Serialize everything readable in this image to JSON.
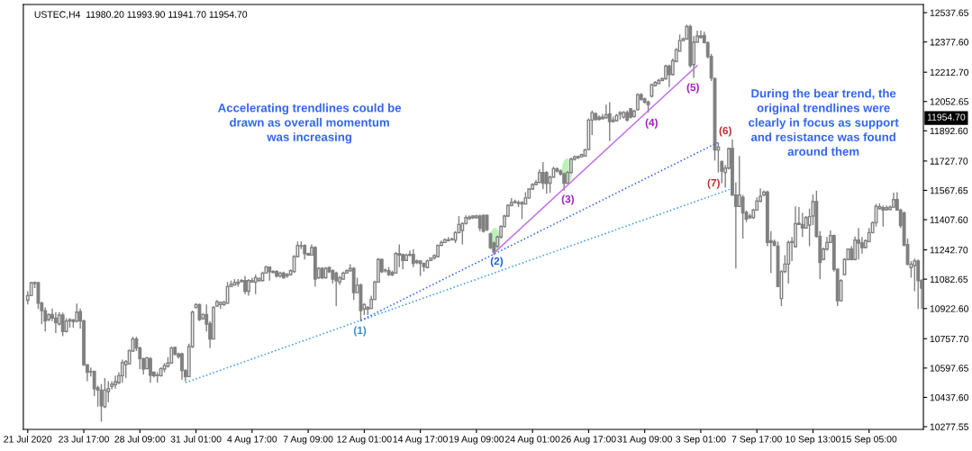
{
  "chart_data": {
    "type": "candlestick",
    "title": "USTEC,H4  11980.20 11993.90 11941.70 11954.70",
    "color": "#808080",
    "categories": [
      "21 Jul 2020",
      null,
      null,
      null,
      null,
      null,
      null,
      null,
      null,
      null,
      null,
      null,
      null,
      null,
      null,
      null,
      "23 Jul 17:00",
      null,
      null,
      null,
      null,
      null,
      null,
      null,
      null,
      null,
      null,
      null,
      null,
      null,
      null,
      null,
      "28 Jul 09:00",
      null,
      null,
      null,
      null,
      null,
      null,
      null,
      null,
      null,
      null,
      null,
      null,
      null,
      null,
      null,
      "31 Jul 01:00",
      null,
      null,
      null,
      null,
      null,
      null,
      null,
      null,
      null,
      null,
      null,
      null,
      null,
      null,
      null,
      "4 Aug 17:00",
      null,
      null,
      null,
      null,
      null,
      null,
      null,
      null,
      null,
      null,
      null,
      null,
      null,
      null,
      null,
      "7 Aug 09:00",
      null,
      null,
      null,
      null,
      null,
      null,
      null,
      null,
      null,
      null,
      null,
      null,
      null,
      null,
      null,
      "12 Aug 01:00",
      null,
      null,
      null,
      null,
      null,
      null,
      null,
      null,
      null,
      null,
      null,
      null,
      null,
      null,
      null,
      "14 Aug 17:00",
      null,
      null,
      null,
      null,
      null,
      null,
      null,
      null,
      null,
      null,
      null,
      null,
      null,
      null,
      null,
      "19 Aug 09:00",
      null,
      null,
      null,
      null,
      null,
      null,
      null,
      null,
      null,
      null,
      null,
      null,
      null,
      null,
      null,
      "24 Aug 01:00",
      null,
      null,
      null,
      null,
      null,
      null,
      null,
      null,
      null,
      null,
      null,
      null,
      null,
      null,
      null,
      "26 Aug 17:00",
      null,
      null,
      null,
      null,
      null,
      null,
      null,
      null,
      null,
      null,
      null,
      null,
      null,
      null,
      null,
      "31 Aug 09:00",
      null,
      null,
      null,
      null,
      null,
      null,
      null,
      null,
      null,
      null,
      null,
      null,
      null,
      null,
      null,
      "3 Sep 01:00",
      null,
      null,
      null,
      null,
      null,
      null,
      null,
      null,
      null,
      null,
      null,
      null,
      null,
      null,
      null,
      "7 Sep 17:00",
      null,
      null,
      null,
      null,
      null,
      null,
      null,
      null,
      null,
      null,
      null,
      null,
      null,
      null,
      null,
      "10 Sep 13:00",
      null,
      null,
      null,
      null,
      null,
      null,
      null,
      null,
      null,
      null,
      null,
      null,
      null,
      null,
      null,
      "15 Sep 05:00",
      null,
      null,
      null,
      null,
      null,
      null,
      null,
      null,
      null,
      null,
      null,
      null,
      null,
      null,
      null
    ],
    "ohlc": [
      [
        10968,
        11017,
        10944,
        10993
      ],
      [
        10993,
        11067,
        10993,
        11064
      ],
      [
        11059,
        11070,
        11034,
        11064
      ],
      [
        11064,
        11067,
        10920,
        10952
      ],
      [
        10952,
        10960,
        10838,
        10911
      ],
      [
        10911,
        10928,
        10797,
        10854
      ],
      [
        10862,
        10895,
        10854,
        10890
      ],
      [
        10890,
        10923,
        10854,
        10870
      ],
      [
        10870,
        10903,
        10789,
        10846
      ],
      [
        10838,
        10903,
        10830,
        10887
      ],
      [
        10887,
        10900,
        10772,
        10797
      ],
      [
        10797,
        10870,
        10792,
        10854
      ],
      [
        10854,
        10870,
        10818,
        10861
      ],
      [
        10861,
        10862,
        10818,
        10851
      ],
      [
        10854,
        10949,
        10846,
        10903
      ],
      [
        10906,
        10923,
        10813,
        10854
      ],
      [
        10854,
        10862,
        10608,
        10616
      ],
      [
        10616,
        10616,
        10526,
        10575
      ],
      [
        10579,
        10600,
        10551,
        10577
      ],
      [
        10579,
        10584,
        10444,
        10485
      ],
      [
        10490,
        10502,
        10387,
        10477
      ],
      [
        10477,
        10510,
        10305,
        10392
      ],
      [
        10387,
        10543,
        10379,
        10477
      ],
      [
        10469,
        10526,
        10412,
        10485
      ],
      [
        10497,
        10526,
        10481,
        10510
      ],
      [
        10507,
        10556,
        10485,
        10523
      ],
      [
        10518,
        10575,
        10510,
        10556
      ],
      [
        10556,
        10644,
        10518,
        10628
      ],
      [
        10616,
        10641,
        10543,
        10633
      ],
      [
        10621,
        10698,
        10616,
        10693
      ],
      [
        10690,
        10769,
        10687,
        10756
      ],
      [
        10756,
        10769,
        10690,
        10707
      ],
      [
        10707,
        10715,
        10592,
        10649
      ],
      [
        10649,
        10654,
        10562,
        10592
      ],
      [
        10595,
        10657,
        10589,
        10654
      ],
      [
        10649,
        10657,
        10518,
        10559
      ],
      [
        10575,
        10579,
        10546,
        10556
      ],
      [
        10559,
        10575,
        10518,
        10557
      ],
      [
        10556,
        10600,
        10551,
        10595
      ],
      [
        10592,
        10625,
        10575,
        10611
      ],
      [
        10608,
        10657,
        10600,
        10625
      ],
      [
        10625,
        10715,
        10625,
        10707
      ],
      [
        10710,
        10715,
        10666,
        10674
      ],
      [
        10674,
        10682,
        10649,
        10661
      ],
      [
        10674,
        10682,
        10534,
        10584
      ],
      [
        10584,
        10592,
        10526,
        10551
      ],
      [
        10551,
        10731,
        10551,
        10715
      ],
      [
        10715,
        10911,
        10707,
        10903
      ],
      [
        10928,
        10952,
        10923,
        10944
      ],
      [
        10944,
        10949,
        10854,
        10862
      ],
      [
        10867,
        10895,
        10862,
        10890
      ],
      [
        10890,
        10944,
        10797,
        10838
      ],
      [
        10841,
        10854,
        10707,
        10756
      ],
      [
        10756,
        10936,
        10756,
        10928
      ],
      [
        10936,
        10969,
        10933,
        10960
      ],
      [
        10944,
        10960,
        10920,
        10956
      ],
      [
        10944,
        10965,
        10936,
        10956
      ],
      [
        10952,
        11067,
        10949,
        11042
      ],
      [
        11042,
        11075,
        11042,
        11054
      ],
      [
        11051,
        11083,
        11047,
        11064
      ],
      [
        11059,
        11083,
        11042,
        11067
      ],
      [
        11070,
        11083,
        11064,
        11075
      ],
      [
        11075,
        11100,
        11001,
        11017
      ],
      [
        11017,
        11083,
        10993,
        11075
      ],
      [
        11067,
        11091,
        11064,
        11075
      ],
      [
        11067,
        11108,
        11001,
        11091
      ],
      [
        11075,
        11091,
        11070,
        11086
      ],
      [
        11075,
        11124,
        11070,
        11116
      ],
      [
        11116,
        11157,
        11113,
        11149
      ],
      [
        11149,
        11152,
        11075,
        11124
      ],
      [
        11124,
        11132,
        11116,
        11119
      ],
      [
        11124,
        11132,
        11091,
        11100
      ],
      [
        11100,
        11124,
        11091,
        11116
      ],
      [
        11116,
        11124,
        11086,
        11091
      ],
      [
        11100,
        11116,
        11091,
        11108
      ],
      [
        11108,
        11136,
        11103,
        11129
      ],
      [
        11124,
        11214,
        11119,
        11206
      ],
      [
        11206,
        11288,
        11201,
        11267
      ],
      [
        11263,
        11288,
        11247,
        11265
      ],
      [
        11267,
        11272,
        11190,
        11222
      ],
      [
        11222,
        11227,
        11211,
        11214
      ],
      [
        11214,
        11272,
        11211,
        11255
      ],
      [
        11255,
        11263,
        11042,
        11083
      ],
      [
        11091,
        11149,
        11083,
        11141
      ],
      [
        11141,
        11149,
        11083,
        11091
      ],
      [
        11091,
        11149,
        11086,
        11141
      ],
      [
        11146,
        11152,
        11116,
        11124
      ],
      [
        11129,
        11136,
        11059,
        11083
      ],
      [
        11116,
        11124,
        10936,
        11075
      ],
      [
        11067,
        11100,
        11051,
        11091
      ],
      [
        11083,
        11124,
        11080,
        11116
      ],
      [
        11116,
        11136,
        11113,
        11129
      ],
      [
        11129,
        11165,
        11124,
        11141
      ],
      [
        11141,
        11149,
        10969,
        11009
      ],
      [
        11009,
        11091,
        11009,
        11051
      ],
      [
        11051,
        11059,
        10854,
        10911
      ],
      [
        10920,
        10952,
        10887,
        10944
      ],
      [
        10920,
        10936,
        10887,
        10928
      ],
      [
        10923,
        10993,
        10920,
        10972
      ],
      [
        10972,
        11075,
        10969,
        11067
      ],
      [
        11067,
        11198,
        11064,
        11190
      ],
      [
        11190,
        11195,
        11116,
        11124
      ],
      [
        11132,
        11141,
        11119,
        11129
      ],
      [
        11129,
        11149,
        11100,
        11108
      ],
      [
        11119,
        11129,
        11100,
        11106
      ],
      [
        11116,
        11231,
        11113,
        11222
      ],
      [
        11222,
        11272,
        11149,
        11214
      ],
      [
        11218,
        11222,
        11136,
        11185
      ],
      [
        11185,
        11222,
        11182,
        11214
      ],
      [
        11214,
        11239,
        11206,
        11218
      ],
      [
        11218,
        11247,
        11149,
        11169
      ],
      [
        11182,
        11190,
        11165,
        11174
      ],
      [
        11182,
        11185,
        11100,
        11169
      ],
      [
        11169,
        11174,
        11124,
        11152
      ],
      [
        11146,
        11190,
        11141,
        11182
      ],
      [
        11185,
        11201,
        11182,
        11198
      ],
      [
        11198,
        11218,
        11190,
        11211
      ],
      [
        11206,
        11272,
        11201,
        11267
      ],
      [
        11267,
        11293,
        11263,
        11283
      ],
      [
        11283,
        11304,
        11280,
        11299
      ],
      [
        11293,
        11313,
        11288,
        11297
      ],
      [
        11299,
        11309,
        11293,
        11302
      ],
      [
        11296,
        11345,
        11280,
        11337
      ],
      [
        11337,
        11427,
        11332,
        11381
      ],
      [
        11349,
        11394,
        11272,
        11386
      ],
      [
        11386,
        11431,
        11381,
        11419
      ],
      [
        11414,
        11431,
        11407,
        11422
      ],
      [
        11419,
        11431,
        11411,
        11427
      ],
      [
        11419,
        11435,
        11414,
        11428
      ],
      [
        11427,
        11435,
        11345,
        11362
      ],
      [
        11431,
        11435,
        11337,
        11345
      ],
      [
        11431,
        11435,
        11345,
        11353
      ],
      [
        11329,
        11337,
        11247,
        11255
      ],
      [
        11280,
        11288,
        11214,
        11231
      ],
      [
        11263,
        11321,
        11255,
        11313
      ],
      [
        11313,
        11378,
        11304,
        11370
      ],
      [
        11370,
        11435,
        11365,
        11427
      ],
      [
        11427,
        11493,
        11424,
        11485
      ],
      [
        11485,
        11526,
        11480,
        11501
      ],
      [
        11501,
        11517,
        11496,
        11506
      ],
      [
        11501,
        11513,
        11476,
        11496
      ],
      [
        11501,
        11509,
        11411,
        11493
      ],
      [
        11493,
        11558,
        11490,
        11526
      ],
      [
        11526,
        11578,
        11522,
        11575
      ],
      [
        11575,
        11607,
        11571,
        11599
      ],
      [
        11599,
        11624,
        11594,
        11611
      ],
      [
        11611,
        11681,
        11607,
        11665
      ],
      [
        11665,
        11722,
        11575,
        11607
      ],
      [
        11665,
        11673,
        11550,
        11605
      ],
      [
        11607,
        11648,
        11555,
        11640
      ],
      [
        11640,
        11697,
        11637,
        11686
      ],
      [
        11686,
        11692,
        11665,
        11673
      ],
      [
        11673,
        11681,
        11648,
        11657
      ],
      [
        11657,
        11665,
        11566,
        11607
      ],
      [
        11607,
        11673,
        11604,
        11665
      ],
      [
        11665,
        11747,
        11660,
        11738
      ],
      [
        11738,
        11758,
        11730,
        11751
      ],
      [
        11746,
        11758,
        11738,
        11752
      ],
      [
        11751,
        11768,
        11746,
        11763
      ],
      [
        11755,
        11796,
        11751,
        11788
      ],
      [
        11791,
        11960,
        11788,
        11951
      ],
      [
        11951,
        12004,
        11869,
        11992
      ],
      [
        11987,
        11992,
        11948,
        11954
      ],
      [
        11967,
        11976,
        11948,
        11955
      ],
      [
        11959,
        11984,
        11954,
        11967
      ],
      [
        11964,
        12036,
        11959,
        11981
      ],
      [
        11984,
        12049,
        11837,
        11943
      ],
      [
        11943,
        11971,
        11938,
        11951
      ],
      [
        11948,
        11984,
        11943,
        11976
      ],
      [
        11984,
        12000,
        11954,
        11992
      ],
      [
        11967,
        12000,
        11959,
        11993
      ],
      [
        11992,
        12004,
        11943,
        11951
      ],
      [
        12012,
        12017,
        11959,
        11967
      ],
      [
        11971,
        12008,
        11964,
        12000
      ],
      [
        12008,
        12098,
        12004,
        12090
      ],
      [
        12090,
        12098,
        12058,
        12063
      ],
      [
        12066,
        12074,
        12041,
        12049
      ],
      [
        12049,
        12058,
        11992,
        12036
      ],
      [
        12082,
        12151,
        12074,
        12144
      ],
      [
        12140,
        12164,
        12135,
        12156
      ],
      [
        12151,
        12177,
        12148,
        12167
      ],
      [
        12167,
        12184,
        12164,
        12177
      ],
      [
        12177,
        12254,
        12172,
        12246
      ],
      [
        12246,
        12254,
        12131,
        12200
      ],
      [
        12200,
        12287,
        12194,
        12275
      ],
      [
        12271,
        12344,
        12266,
        12336
      ],
      [
        12328,
        12418,
        12325,
        12385
      ],
      [
        12385,
        12402,
        12380,
        12394
      ],
      [
        12394,
        12472,
        12390,
        12462
      ],
      [
        12462,
        12472,
        12238,
        12249
      ],
      [
        12254,
        12410,
        12181,
        12377
      ],
      [
        12377,
        12439,
        12374,
        12410
      ],
      [
        12410,
        12439,
        12394,
        12402
      ],
      [
        12413,
        12434,
        12369,
        12374
      ],
      [
        12374,
        12380,
        12287,
        12298
      ],
      [
        12298,
        12312,
        12164,
        12181
      ],
      [
        12177,
        12184,
        11730,
        11788
      ],
      [
        11788,
        11828,
        11665,
        11804
      ],
      [
        11725,
        11730,
        11607,
        11673
      ],
      [
        11665,
        11706,
        11583,
        11689
      ],
      [
        11689,
        11801,
        11681,
        11796
      ],
      [
        11796,
        11845,
        11538,
        11542
      ],
      [
        11542,
        11611,
        11141,
        11480
      ],
      [
        11480,
        11755,
        11476,
        11542
      ],
      [
        11529,
        11542,
        11304,
        11444
      ],
      [
        11447,
        11457,
        11394,
        11411
      ],
      [
        11427,
        11440,
        11411,
        11419
      ],
      [
        11419,
        11468,
        11414,
        11460
      ],
      [
        11460,
        11529,
        11457,
        11509
      ],
      [
        11509,
        11578,
        11501,
        11534
      ],
      [
        11542,
        11566,
        11534,
        11558
      ],
      [
        11558,
        11566,
        11263,
        11283
      ],
      [
        11293,
        11345,
        11116,
        11283
      ],
      [
        11288,
        11299,
        11263,
        11267
      ],
      [
        11263,
        11288,
        11040,
        11042
      ],
      [
        10977,
        11132,
        10936,
        11124
      ],
      [
        11124,
        11214,
        11116,
        11165
      ],
      [
        11165,
        11293,
        11059,
        11283
      ],
      [
        11283,
        11313,
        11182,
        11288
      ],
      [
        11260,
        11480,
        11255,
        11386
      ],
      [
        11381,
        11476,
        11378,
        11388
      ],
      [
        11381,
        11444,
        11313,
        11362
      ],
      [
        11362,
        11427,
        11358,
        11419
      ],
      [
        11378,
        11468,
        11263,
        11424
      ],
      [
        11427,
        11545,
        11378,
        11506
      ],
      [
        11506,
        11566,
        11309,
        11316
      ],
      [
        11316,
        11345,
        11083,
        11174
      ],
      [
        11190,
        11255,
        11185,
        11247
      ],
      [
        11247,
        11313,
        11239,
        11283
      ],
      [
        11283,
        11349,
        11280,
        11321
      ],
      [
        11321,
        11326,
        11124,
        11136
      ],
      [
        11136,
        11141,
        10936,
        10965
      ],
      [
        10965,
        11083,
        10960,
        11075
      ],
      [
        11108,
        11198,
        11103,
        11190
      ],
      [
        11190,
        11250,
        11185,
        11247
      ],
      [
        11247,
        11263,
        11185,
        11190
      ],
      [
        11190,
        11316,
        11185,
        11296
      ],
      [
        11296,
        11362,
        11190,
        11280
      ],
      [
        11280,
        11313,
        11222,
        11255
      ],
      [
        11255,
        11299,
        11250,
        11293
      ],
      [
        11288,
        11362,
        11283,
        11337
      ],
      [
        11337,
        11398,
        11332,
        11391
      ],
      [
        11391,
        11493,
        11370,
        11480
      ],
      [
        11468,
        11496,
        11463,
        11478
      ],
      [
        11473,
        11485,
        11370,
        11460
      ],
      [
        11463,
        11485,
        11457,
        11473
      ],
      [
        11463,
        11485,
        11460,
        11476
      ],
      [
        11476,
        11555,
        11473,
        11517
      ],
      [
        11517,
        11558,
        11460,
        11460
      ],
      [
        11460,
        11468,
        11362,
        11375
      ],
      [
        11444,
        11452,
        11263,
        11267
      ],
      [
        11272,
        11304,
        11157,
        11165
      ],
      [
        11146,
        11182,
        11091,
        11165
      ],
      [
        11157,
        11195,
        11017,
        11182
      ],
      [
        11182,
        11190,
        10920,
        11075
      ],
      [
        11075,
        11083,
        10920,
        11034
      ]
    ],
    "series": [
      {
        "type": "line",
        "color": "#3a9ae8",
        "line_style": "dotted",
        "values": [
          null,
          null,
          null,
          null,
          null,
          null,
          null,
          null,
          null,
          null,
          null,
          null,
          null,
          null,
          null,
          null,
          null,
          null,
          null,
          null,
          null,
          null,
          null,
          null,
          null,
          null,
          null,
          null,
          null,
          null,
          null,
          null,
          null,
          null,
          null,
          null,
          null,
          null,
          null,
          null,
          null,
          null,
          null,
          null,
          null,
          10518,
          null,
          null,
          null,
          null,
          null,
          null,
          null,
          null,
          null,
          null,
          null,
          null,
          null,
          null,
          null,
          null,
          null,
          null,
          null,
          null,
          null,
          null,
          null,
          null,
          null,
          null,
          null,
          null,
          null,
          null,
          null,
          null,
          null,
          null,
          null,
          null,
          null,
          null,
          null,
          null,
          null,
          null,
          null,
          null,
          null,
          null,
          null,
          null,
          null,
          null,
          null,
          null,
          null,
          null,
          null,
          null,
          null,
          null,
          null,
          null,
          null,
          null,
          null,
          null,
          null,
          null,
          null,
          null,
          null,
          null,
          null,
          null,
          null,
          null,
          null,
          null,
          null,
          null,
          null,
          null,
          null,
          null,
          null,
          null,
          null,
          null,
          null,
          null,
          null,
          null,
          null,
          null,
          null,
          null,
          null,
          null,
          null,
          null,
          null,
          null,
          null,
          null,
          null,
          null,
          null,
          null,
          null,
          null,
          null,
          null,
          null,
          null,
          null,
          null,
          null,
          null,
          null,
          null,
          null,
          null,
          null,
          null,
          null,
          null,
          null,
          null,
          null,
          null,
          null,
          null,
          null,
          null,
          null,
          null,
          null,
          null,
          null,
          null,
          null,
          null,
          null,
          null,
          null,
          null,
          null,
          null,
          null,
          null,
          null,
          null,
          null,
          null,
          null,
          null,
          null,
          11578,
          null,
          null,
          null,
          null,
          null,
          null,
          null,
          null,
          null,
          null,
          null,
          null,
          null,
          null,
          null,
          null,
          null,
          null,
          null,
          null,
          null,
          null,
          null,
          null,
          null,
          null,
          null,
          null,
          null,
          null,
          null,
          null,
          null,
          null,
          null,
          null,
          null,
          null,
          null,
          null,
          null,
          null,
          null,
          null,
          null,
          null,
          null,
          null,
          null,
          null,
          null,
          null,
          null,
          null
        ]
      },
      {
        "type": "line",
        "color": "#2f5fe8",
        "line_style": "dotted",
        "values": [
          null,
          null,
          null,
          null,
          null,
          null,
          null,
          null,
          null,
          null,
          null,
          null,
          null,
          null,
          null,
          null,
          null,
          null,
          null,
          null,
          null,
          null,
          null,
          null,
          null,
          null,
          null,
          null,
          null,
          null,
          null,
          null,
          null,
          null,
          null,
          null,
          null,
          null,
          null,
          null,
          null,
          null,
          null,
          null,
          null,
          null,
          null,
          null,
          null,
          null,
          null,
          null,
          null,
          null,
          null,
          null,
          null,
          null,
          null,
          null,
          null,
          null,
          null,
          null,
          null,
          null,
          null,
          null,
          null,
          null,
          null,
          null,
          null,
          null,
          null,
          null,
          null,
          null,
          null,
          null,
          null,
          null,
          null,
          null,
          null,
          null,
          null,
          null,
          null,
          null,
          null,
          null,
          null,
          null,
          null,
          10857,
          null,
          null,
          null,
          null,
          null,
          null,
          null,
          null,
          null,
          null,
          null,
          null,
          null,
          null,
          null,
          null,
          null,
          null,
          null,
          null,
          null,
          null,
          null,
          null,
          null,
          null,
          null,
          null,
          null,
          null,
          null,
          null,
          null,
          null,
          null,
          null,
          null,
          null,
          null,
          null,
          null,
          null,
          null,
          null,
          null,
          null,
          null,
          null,
          null,
          null,
          null,
          null,
          null,
          null,
          null,
          null,
          null,
          null,
          null,
          null,
          null,
          null,
          null,
          null,
          null,
          null,
          null,
          null,
          null,
          null,
          null,
          null,
          null,
          null,
          null,
          null,
          null,
          null,
          null,
          null,
          null,
          null,
          null,
          null,
          null,
          null,
          null,
          null,
          null,
          null,
          null,
          null,
          null,
          null,
          null,
          null,
          null,
          null,
          null,
          null,
          null,
          11830,
          null,
          null,
          null,
          null,
          null,
          null,
          null,
          null,
          null,
          null,
          null,
          null,
          null,
          null,
          null,
          null,
          null,
          null,
          null,
          null,
          null,
          null,
          null,
          null,
          null,
          null,
          null,
          null,
          null,
          null,
          null,
          null,
          null,
          null,
          null,
          null,
          null,
          null,
          null,
          null,
          null,
          null,
          null,
          null,
          null,
          null,
          null,
          null,
          null,
          null,
          null,
          null,
          null,
          null,
          null,
          null,
          null,
          null
        ]
      },
      {
        "type": "line",
        "color": "#c070e8",
        "line_style": "solid",
        "values": [
          null,
          null,
          null,
          null,
          null,
          null,
          null,
          null,
          null,
          null,
          null,
          null,
          null,
          null,
          null,
          null,
          null,
          null,
          null,
          null,
          null,
          null,
          null,
          null,
          null,
          null,
          null,
          null,
          null,
          null,
          null,
          null,
          null,
          null,
          null,
          null,
          null,
          null,
          null,
          null,
          null,
          null,
          null,
          null,
          null,
          null,
          null,
          null,
          null,
          null,
          null,
          null,
          null,
          null,
          null,
          null,
          null,
          null,
          null,
          null,
          null,
          null,
          null,
          null,
          null,
          null,
          null,
          null,
          null,
          null,
          null,
          null,
          null,
          null,
          null,
          null,
          null,
          null,
          null,
          null,
          null,
          null,
          null,
          null,
          null,
          null,
          null,
          null,
          null,
          null,
          null,
          null,
          null,
          null,
          null,
          null,
          null,
          null,
          null,
          null,
          null,
          null,
          null,
          null,
          null,
          null,
          null,
          null,
          null,
          null,
          null,
          null,
          null,
          null,
          null,
          null,
          null,
          null,
          null,
          null,
          null,
          null,
          null,
          null,
          null,
          null,
          null,
          null,
          null,
          null,
          null,
          null,
          null,
          11225,
          null,
          null,
          null,
          null,
          null,
          null,
          null,
          null,
          null,
          null,
          null,
          null,
          null,
          null,
          null,
          null,
          null,
          null,
          null,
          null,
          null,
          null,
          null,
          null,
          null,
          null,
          null,
          null,
          null,
          null,
          null,
          null,
          null,
          null,
          null,
          null,
          null,
          null,
          null,
          null,
          null,
          null,
          null,
          null,
          null,
          null,
          null,
          null,
          null,
          null,
          null,
          null,
          null,
          null,
          null,
          null,
          null,
          12249,
          null,
          null,
          null,
          null,
          null,
          null,
          null,
          null,
          null,
          null,
          null,
          null,
          null,
          null,
          null,
          null,
          null,
          null,
          null,
          null,
          null,
          null,
          null,
          null,
          null,
          null,
          null,
          null,
          null,
          null,
          null,
          null,
          null,
          null,
          null,
          null,
          null,
          null,
          null,
          null,
          null,
          null,
          null,
          null,
          null,
          null,
          null,
          null,
          null,
          null,
          null,
          null,
          null,
          null,
          null,
          null,
          null,
          null,
          null,
          null,
          null,
          null,
          null,
          null
        ]
      }
    ],
    "ylim": [
      10263,
      12582
    ],
    "yticks": [
      {
        "value": 10277.55,
        "label": "10277.55"
      },
      {
        "value": 10437.6,
        "label": "10437.60"
      },
      {
        "value": 10597.65,
        "label": "10597.65"
      },
      {
        "value": 10757.7,
        "label": "10757.70"
      },
      {
        "value": 10922.6,
        "label": "10922.60"
      },
      {
        "value": 11082.65,
        "label": "11082.65"
      },
      {
        "value": 11242.7,
        "label": "11242.70"
      },
      {
        "value": 11407.6,
        "label": "11407.60"
      },
      {
        "value": 11567.65,
        "label": "11567.65"
      },
      {
        "value": 11727.7,
        "label": "11727.70"
      },
      {
        "value": 11892.6,
        "label": "11892.60"
      },
      {
        "value": 12052.65,
        "label": "12052.65"
      },
      {
        "value": 12212.7,
        "label": "12212.70"
      },
      {
        "value": 12377.6,
        "label": "12377.60"
      },
      {
        "value": 12537.65,
        "label": "12537.65"
      }
    ],
    "grid": false,
    "legend": false,
    "annotations": [
      "Accelerating trendlines could be\ndrawn as overall momentum\nwas increasing",
      "During the bear trend, the\noriginal trendlines were\nclearly in focus as support\nand resistance was found\naround them",
      "(1)",
      "(2)",
      "(3)",
      "(4)",
      "(5)",
      "(6)",
      "(7)",
      "11954.70"
    ]
  }
}
